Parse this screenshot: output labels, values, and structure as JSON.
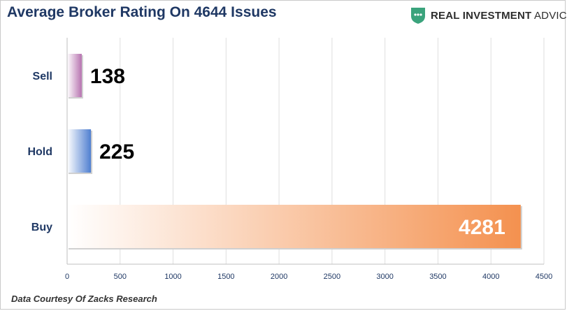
{
  "header": {
    "title": "Average Broker Rating On 4644 Issues",
    "brand_name_bold": "REAL INVESTMENT",
    "brand_name_light": "ADVICE",
    "brand_color": "#3aa37c",
    "logo_icon": "shield-icon"
  },
  "footer": {
    "source": "Data Courtesy Of Zacks Research"
  },
  "chart_data": {
    "type": "bar",
    "orientation": "horizontal",
    "title": "Average Broker Rating On 4644 Issues",
    "categories": [
      "Sell",
      "Hold",
      "Buy"
    ],
    "values": [
      138,
      225,
      4281
    ],
    "data_labels": [
      "138",
      "225",
      "4281"
    ],
    "bar_colors": [
      "#b773b0",
      "#4f7fd0",
      "#f4914f"
    ],
    "xlim": [
      0,
      4500
    ],
    "x_ticks": [
      0,
      500,
      1000,
      1500,
      2000,
      2500,
      3000,
      3500,
      4000,
      4500
    ],
    "x_tick_labels": [
      "0",
      "500",
      "1000",
      "1500",
      "2000",
      "2500",
      "3000",
      "3500",
      "4000",
      "4500"
    ],
    "grid": true,
    "legend": "none",
    "xlabel": "",
    "ylabel": ""
  }
}
